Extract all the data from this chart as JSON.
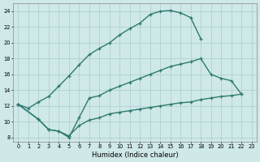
{
  "xlabel": "Humidex (Indice chaleur)",
  "background_color": "#cfe8e8",
  "grid_color": "#aacccc",
  "line_color": "#2d7b6e",
  "xlim": [
    -0.5,
    23.5
  ],
  "ylim": [
    7.5,
    25.0
  ],
  "yticks": [
    8,
    10,
    12,
    14,
    16,
    18,
    20,
    22,
    24
  ],
  "xticks": [
    0,
    1,
    2,
    3,
    4,
    5,
    6,
    7,
    8,
    9,
    10,
    11,
    12,
    13,
    14,
    15,
    16,
    17,
    18,
    19,
    20,
    21,
    22,
    23
  ],
  "curve1_x": [
    0,
    1,
    2,
    3,
    4,
    5,
    6,
    7,
    8,
    9,
    10,
    11,
    12,
    13,
    14,
    15,
    16,
    17,
    18
  ],
  "curve1_y": [
    12.2,
    11.7,
    12.5,
    13.2,
    14.5,
    15.8,
    17.2,
    18.5,
    19.3,
    20.0,
    21.0,
    21.8,
    22.5,
    23.6,
    24.0,
    24.1,
    23.8,
    23.2,
    20.5
  ],
  "curve2_x": [
    0,
    2,
    3,
    4,
    5,
    6,
    7,
    8,
    9,
    10,
    11,
    12,
    13,
    14,
    15,
    16,
    17,
    18,
    19,
    20,
    21,
    22
  ],
  "curve2_y": [
    12.2,
    10.3,
    9.0,
    8.8,
    8.0,
    10.5,
    13.0,
    13.3,
    14.0,
    14.5,
    15.0,
    15.5,
    16.0,
    16.5,
    17.0,
    17.3,
    17.6,
    18.0,
    16.0,
    15.5,
    15.2,
    13.5
  ],
  "curve3_x": [
    0,
    2,
    3,
    4,
    5,
    6,
    7,
    8,
    9,
    10,
    11,
    12,
    13,
    14,
    15,
    16,
    17,
    18,
    19,
    20,
    21,
    22
  ],
  "curve3_y": [
    12.2,
    10.3,
    9.0,
    8.8,
    8.2,
    9.5,
    10.2,
    10.5,
    11.0,
    11.2,
    11.4,
    11.6,
    11.8,
    12.0,
    12.2,
    12.4,
    12.5,
    12.8,
    13.0,
    13.2,
    13.3,
    13.5
  ],
  "marker_size": 3.5,
  "line_width": 1.0
}
